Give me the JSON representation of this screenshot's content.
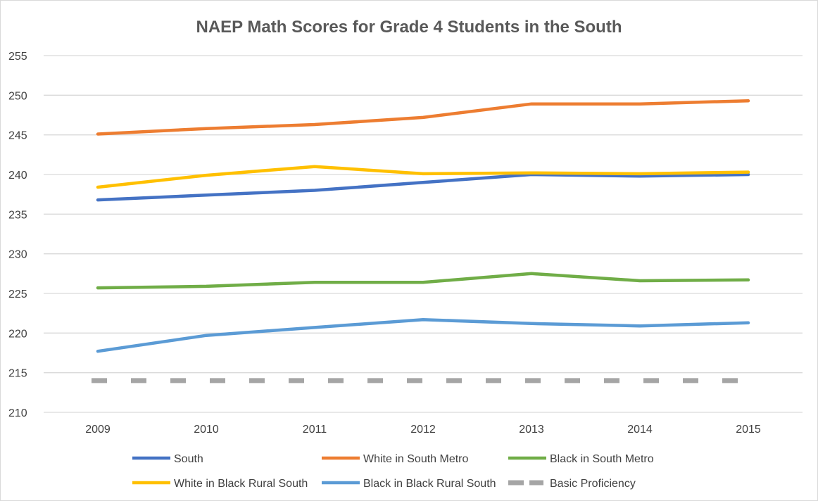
{
  "chart_data": {
    "type": "line",
    "title": "NAEP Math Scores for Grade 4 Students in the South",
    "xlabel": "",
    "ylabel": "",
    "x": [
      "2009",
      "2010",
      "2011",
      "2012",
      "2013",
      "2014",
      "2015"
    ],
    "ylim": [
      210,
      255
    ],
    "yticks": [
      210,
      215,
      220,
      225,
      230,
      235,
      240,
      245,
      250,
      255
    ],
    "grid": true,
    "legend_position": "bottom",
    "series": [
      {
        "name": "South",
        "color": "#4472c4",
        "dashed": false,
        "values": [
          236.8,
          237.4,
          238.0,
          239.0,
          240.0,
          239.8,
          240.0
        ]
      },
      {
        "name": "White in South Metro",
        "color": "#ed7d31",
        "dashed": false,
        "values": [
          245.1,
          245.8,
          246.3,
          247.2,
          248.9,
          248.9,
          249.3
        ]
      },
      {
        "name": "Black in South Metro",
        "color": "#70ad47",
        "dashed": false,
        "values": [
          225.7,
          225.9,
          226.4,
          226.4,
          227.5,
          226.6,
          226.7
        ]
      },
      {
        "name": "White in Black Rural South",
        "color": "#ffc000",
        "dashed": false,
        "values": [
          238.4,
          239.9,
          241.0,
          240.1,
          240.2,
          240.1,
          240.3
        ]
      },
      {
        "name": "Black in Black Rural South",
        "color": "#5b9bd5",
        "dashed": false,
        "values": [
          217.7,
          219.7,
          220.7,
          221.7,
          221.2,
          220.9,
          221.3
        ]
      },
      {
        "name": "Basic Proficiency",
        "color": "#a5a5a5",
        "dashed": true,
        "values": [
          214,
          214,
          214,
          214,
          214,
          214,
          214
        ]
      }
    ]
  }
}
